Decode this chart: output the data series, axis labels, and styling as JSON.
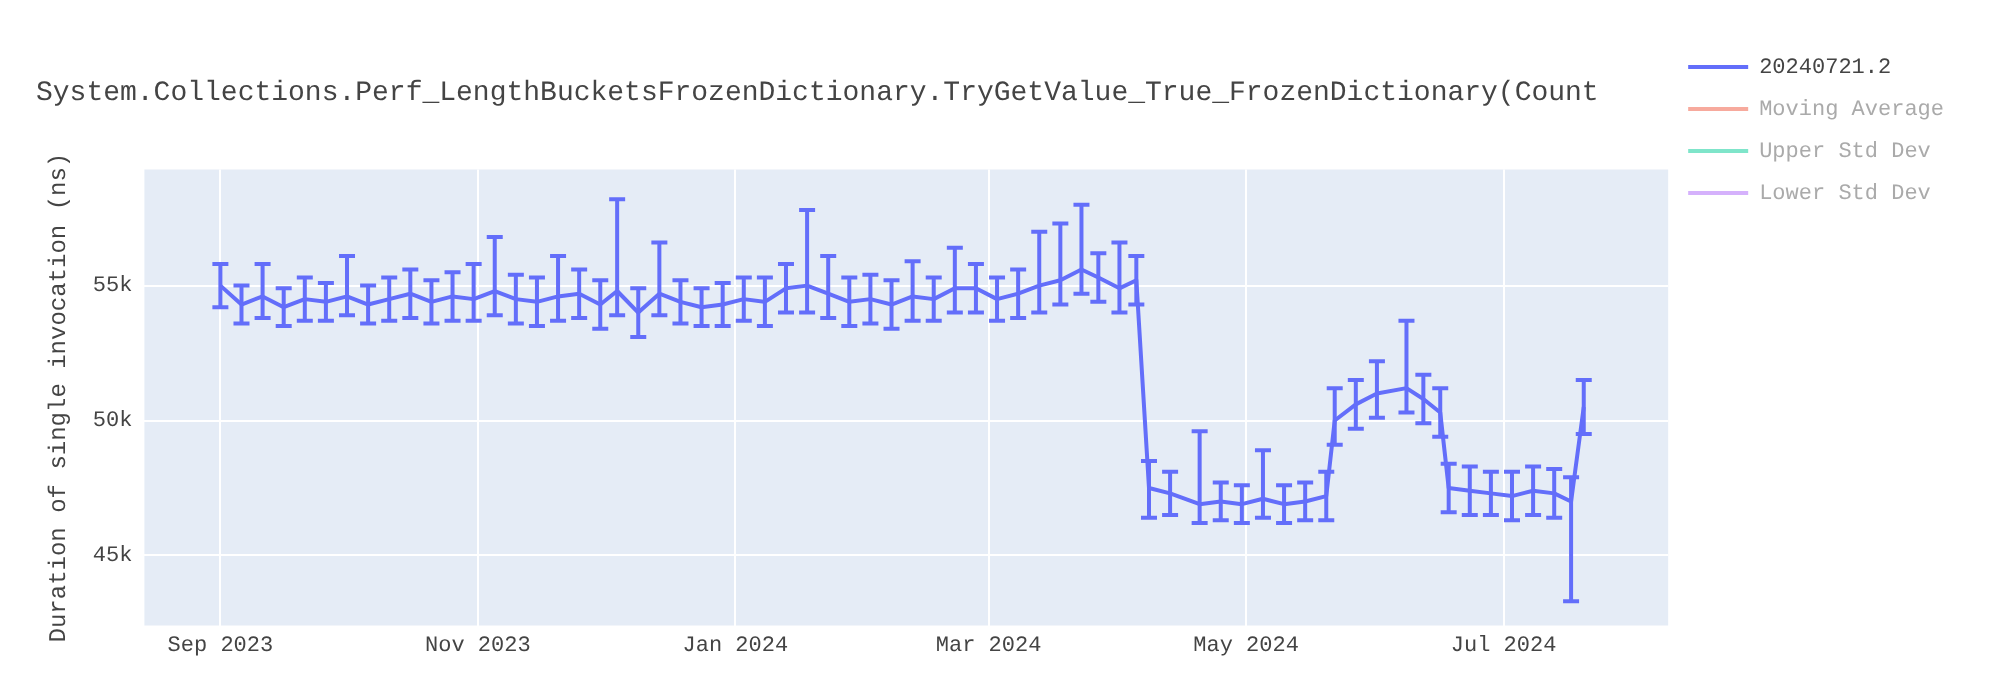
{
  "chart_data": {
    "type": "line",
    "title": "System.Collections.Perf_LengthBucketsFrozenDictionary.TryGetValue_True_FrozenDictionary(Count",
    "ylabel": "Duration of single invocation (ns)",
    "x": [
      "2023-09-01",
      "2023-09-06",
      "2023-09-11",
      "2023-09-16",
      "2023-09-21",
      "2023-09-26",
      "2023-10-01",
      "2023-10-06",
      "2023-10-11",
      "2023-10-16",
      "2023-10-21",
      "2023-10-26",
      "2023-10-31",
      "2023-11-05",
      "2023-11-10",
      "2023-11-15",
      "2023-11-20",
      "2023-11-25",
      "2023-11-30",
      "2023-12-04",
      "2023-12-09",
      "2023-12-14",
      "2023-12-19",
      "2023-12-24",
      "2023-12-29",
      "2024-01-03",
      "2024-01-08",
      "2024-01-13",
      "2024-01-18",
      "2024-01-23",
      "2024-01-28",
      "2024-02-02",
      "2024-02-07",
      "2024-02-12",
      "2024-02-17",
      "2024-02-22",
      "2024-02-27",
      "2024-03-03",
      "2024-03-08",
      "2024-03-13",
      "2024-03-18",
      "2024-03-23",
      "2024-03-27",
      "2024-04-01",
      "2024-04-05",
      "2024-04-08",
      "2024-04-13",
      "2024-04-20",
      "2024-04-25",
      "2024-04-30",
      "2024-05-05",
      "2024-05-10",
      "2024-05-15",
      "2024-05-20",
      "2024-05-22",
      "2024-05-27",
      "2024-06-01",
      "2024-06-08",
      "2024-06-12",
      "2024-06-16",
      "2024-06-18",
      "2024-06-23",
      "2024-06-28",
      "2024-07-03",
      "2024-07-08",
      "2024-07-13",
      "2024-07-17",
      "2024-07-20"
    ],
    "series": [
      {
        "name": "20240721.2",
        "color": "#636efa",
        "values": [
          55000,
          54300,
          54600,
          54200,
          54500,
          54400,
          54600,
          54300,
          54500,
          54700,
          54400,
          54600,
          54500,
          54800,
          54500,
          54400,
          54600,
          54700,
          54300,
          54800,
          54000,
          54700,
          54400,
          54200,
          54300,
          54500,
          54400,
          54900,
          55000,
          54700,
          54400,
          54500,
          54300,
          54600,
          54500,
          54900,
          54900,
          54500,
          54700,
          55000,
          55200,
          55600,
          55300,
          54900,
          55200,
          47500,
          47300,
          46900,
          47000,
          46900,
          47100,
          46900,
          47000,
          47200,
          50000,
          50600,
          51000,
          51200,
          50800,
          50300,
          47500,
          47400,
          47300,
          47200,
          47400,
          47300,
          47000,
          50500
        ],
        "errors": [
          800,
          700,
          [
            53800,
            55800
          ],
          700,
          800,
          700,
          [
            53900,
            56100
          ],
          700,
          800,
          900,
          800,
          900,
          [
            53700,
            55800
          ],
          [
            53900,
            56800
          ],
          900,
          900,
          [
            53700,
            56100
          ],
          900,
          900,
          [
            53900,
            58200
          ],
          900,
          [
            53900,
            56600
          ],
          800,
          700,
          800,
          800,
          900,
          900,
          [
            54000,
            57800
          ],
          [
            53800,
            56100
          ],
          900,
          900,
          900,
          [
            53700,
            55900
          ],
          800,
          [
            54000,
            56400
          ],
          900,
          800,
          900,
          [
            54000,
            57000
          ],
          [
            54300,
            57300
          ],
          [
            54700,
            58000
          ],
          900,
          [
            54000,
            56600
          ],
          900,
          [
            46400,
            48500
          ],
          800,
          [
            46200,
            49600
          ],
          700,
          700,
          [
            46400,
            48900
          ],
          700,
          700,
          900,
          [
            49100,
            51200
          ],
          900,
          [
            50100,
            52200
          ],
          [
            50300,
            53700
          ],
          900,
          900,
          900,
          900,
          800,
          900,
          900,
          900,
          [
            43300,
            47900
          ],
          1000
        ]
      },
      {
        "name": "Moving Average",
        "color": "#ef553b",
        "values": [
          null,
          null,
          null,
          null,
          null,
          null,
          null,
          null,
          null,
          null,
          null,
          null,
          null,
          null,
          null,
          null,
          null,
          null,
          null,
          null,
          null,
          null,
          null,
          null,
          null,
          null,
          null,
          null,
          null,
          null,
          null,
          null,
          null,
          null,
          null,
          null,
          null,
          null,
          null,
          null,
          null,
          null,
          null,
          null,
          null,
          null,
          null,
          null,
          null,
          null,
          null,
          null,
          null,
          null,
          null,
          null,
          null,
          null,
          null,
          null,
          null,
          null,
          null,
          null,
          null,
          null,
          null,
          null
        ]
      },
      {
        "name": "Upper Std Dev",
        "color": "#00cc96",
        "values": [
          null,
          null,
          null,
          null,
          null,
          null,
          null,
          null,
          null,
          null,
          null,
          null,
          null,
          null,
          null,
          null,
          null,
          null,
          null,
          null,
          null,
          null,
          null,
          null,
          null,
          null,
          null,
          null,
          null,
          null,
          null,
          null,
          null,
          null,
          null,
          null,
          null,
          null,
          null,
          null,
          null,
          null,
          null,
          null,
          null,
          null,
          null,
          null,
          null,
          null,
          null,
          null,
          null,
          null,
          null,
          null,
          null,
          null,
          null,
          null,
          null,
          null,
          null,
          null,
          null,
          null,
          null,
          null
        ]
      },
      {
        "name": "Lower Std Dev",
        "color": "#ab63fa",
        "values": [
          null,
          null,
          null,
          null,
          null,
          null,
          null,
          null,
          null,
          null,
          null,
          null,
          null,
          null,
          null,
          null,
          null,
          null,
          null,
          null,
          null,
          null,
          null,
          null,
          null,
          null,
          null,
          null,
          null,
          null,
          null,
          null,
          null,
          null,
          null,
          null,
          null,
          null,
          null,
          null,
          null,
          null,
          null,
          null,
          null,
          null,
          null,
          null,
          null,
          null,
          null,
          null,
          null,
          null,
          null,
          null,
          null,
          null,
          null,
          null,
          null,
          null,
          null,
          null,
          null,
          null,
          null,
          null
        ]
      }
    ],
    "xlim": [
      "2023-08-14",
      "2024-08-09"
    ],
    "xticks": [
      {
        "value": "2023-09-01",
        "label": "Sep 2023"
      },
      {
        "value": "2023-11-01",
        "label": "Nov 2023"
      },
      {
        "value": "2024-01-01",
        "label": "Jan 2024"
      },
      {
        "value": "2024-03-01",
        "label": "Mar 2024"
      },
      {
        "value": "2024-05-01",
        "label": "May 2024"
      },
      {
        "value": "2024-07-01",
        "label": "Jul 2024"
      }
    ],
    "ylim": [
      42400,
      59300
    ],
    "yticks": [
      {
        "value": 45000,
        "label": "45k"
      },
      {
        "value": 50000,
        "label": "50k"
      },
      {
        "value": 55000,
        "label": "55k"
      }
    ],
    "grid": true,
    "legend": "right",
    "marker": "none",
    "line_style": "solid"
  }
}
